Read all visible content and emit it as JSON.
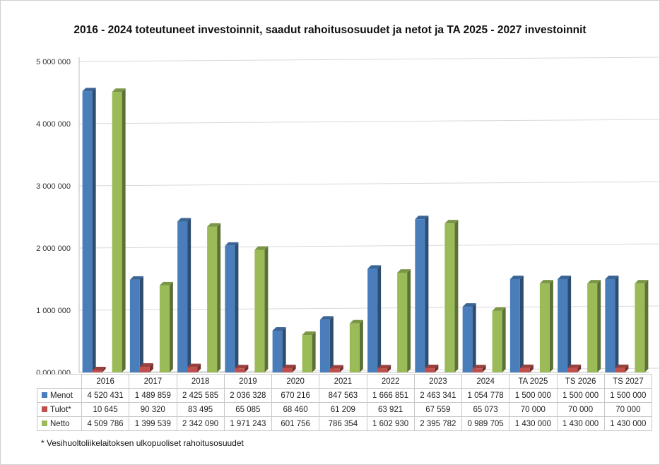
{
  "chart_data": {
    "type": "bar",
    "title": "2016 - 2024 toteutuneet investoinnit, saadut rahoitusosuudet ja netot ja TA 2025 - 2027 investoinnit",
    "categories": [
      "2016",
      "2017",
      "2018",
      "2019",
      "2020",
      "2021",
      "2022",
      "2023",
      "2024",
      "TA 2025",
      "TS 2026",
      "TS 2027"
    ],
    "series": [
      {
        "name": "Menot",
        "color": "#4a7ebb",
        "values": [
          4520431,
          1489859,
          2425585,
          2036328,
          670216,
          847563,
          1666851,
          2463341,
          1054778,
          1500000,
          1500000,
          1500000
        ],
        "labels": [
          "4 520 431",
          "1 489 859",
          "2 425 585",
          "2 036 328",
          "670 216",
          "847 563",
          "1 666 851",
          "2 463 341",
          "1 054 778",
          "1 500 000",
          "1 500 000",
          "1 500 000"
        ]
      },
      {
        "name": "Tulot*",
        "color": "#c0504d",
        "values": [
          10645,
          90320,
          83495,
          65085,
          68460,
          61209,
          63921,
          67559,
          65073,
          70000,
          70000,
          70000
        ],
        "labels": [
          "10 645",
          "90 320",
          "83 495",
          "65 085",
          "68 460",
          "61 209",
          "63 921",
          "67 559",
          "65 073",
          "70 000",
          "70 000",
          "70 000"
        ]
      },
      {
        "name": "Netto",
        "color": "#9bbb59",
        "values": [
          4509786,
          1399539,
          2342090,
          1971243,
          601756,
          786354,
          1602930,
          2395782,
          989705,
          1430000,
          1430000,
          1430000
        ],
        "labels": [
          "4 509 786",
          "1 399 539",
          "2 342 090",
          "1 971 243",
          "601 756",
          "786 354",
          "1 602 930",
          "2 395 782",
          "0 989 705",
          "1 430 000",
          "1 430 000",
          "1 430 000"
        ]
      }
    ],
    "ylim": [
      0,
      5000000
    ],
    "yticks": [
      0,
      1000000,
      2000000,
      3000000,
      4000000,
      5000000
    ],
    "ytick_labels": [
      "0 000 000",
      "1 000 000",
      "2 000 000",
      "3 000 000",
      "4 000 000",
      "5 000 000"
    ],
    "grid": true,
    "legend": "data-table"
  },
  "footnote": "* Vesihuoltoliikelaitoksen ulkopuoliset rahoitusosuudet"
}
